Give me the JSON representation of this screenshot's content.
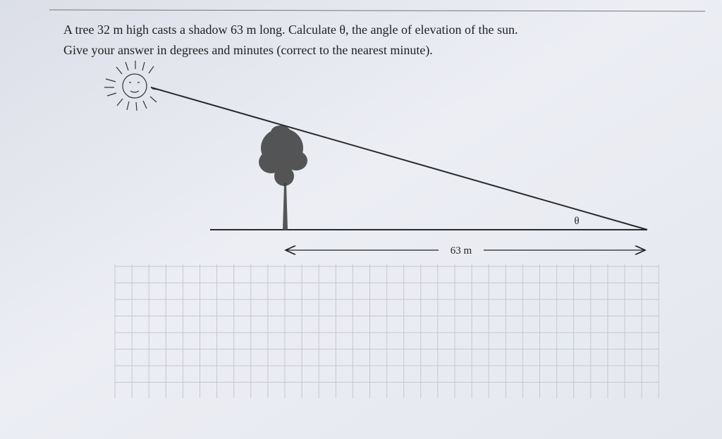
{
  "question": {
    "lines": [
      "A tree 32 m high casts a shadow 63 m long. Calculate θ, the angle of elevation of the sun.",
      "Give your answer in degrees and minutes (correct to the nearest minute)."
    ]
  },
  "diagram": {
    "angle_label": "θ",
    "shadow_label": "63 m"
  }
}
